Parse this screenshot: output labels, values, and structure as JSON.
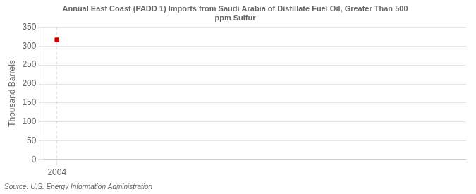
{
  "chart_data": {
    "type": "scatter",
    "title": "Annual East Coast (PADD 1) Imports from Saudi Arabia of Distillate Fuel Oil, Greater Than 500\nppm Sulfur",
    "ylabel": "Thousand Barrels",
    "source": "Source: U.S. Energy Information Administration",
    "x": [
      2004
    ],
    "values": [
      316
    ],
    "color": "#cc0000",
    "marker": "square",
    "xlim": [
      2003.4,
      2023
    ],
    "xticks": [
      2004
    ],
    "ylim": [
      0,
      350
    ],
    "yticks": [
      0,
      50,
      100,
      150,
      200,
      250,
      300,
      350
    ],
    "grid": true
  }
}
